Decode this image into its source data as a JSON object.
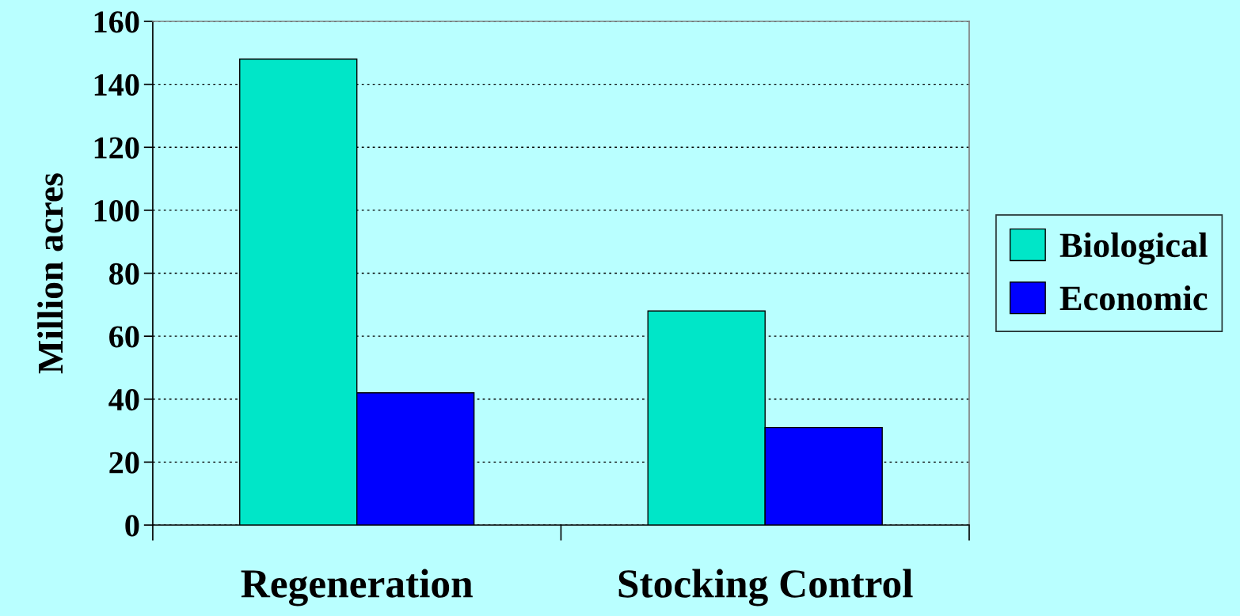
{
  "chart_data": {
    "type": "bar",
    "ylabel": "Million acres",
    "categories": [
      "Regeneration",
      "Stocking Control"
    ],
    "series": [
      {
        "name": "Biological",
        "color": "#00e6c8",
        "values": [
          148,
          68
        ]
      },
      {
        "name": "Economic",
        "color": "#0000ff",
        "values": [
          42,
          31
        ]
      }
    ],
    "ylim": [
      0,
      160
    ],
    "yticks": [
      0,
      20,
      40,
      60,
      80,
      100,
      120,
      140,
      160
    ],
    "grid": "y",
    "legend": "right"
  }
}
